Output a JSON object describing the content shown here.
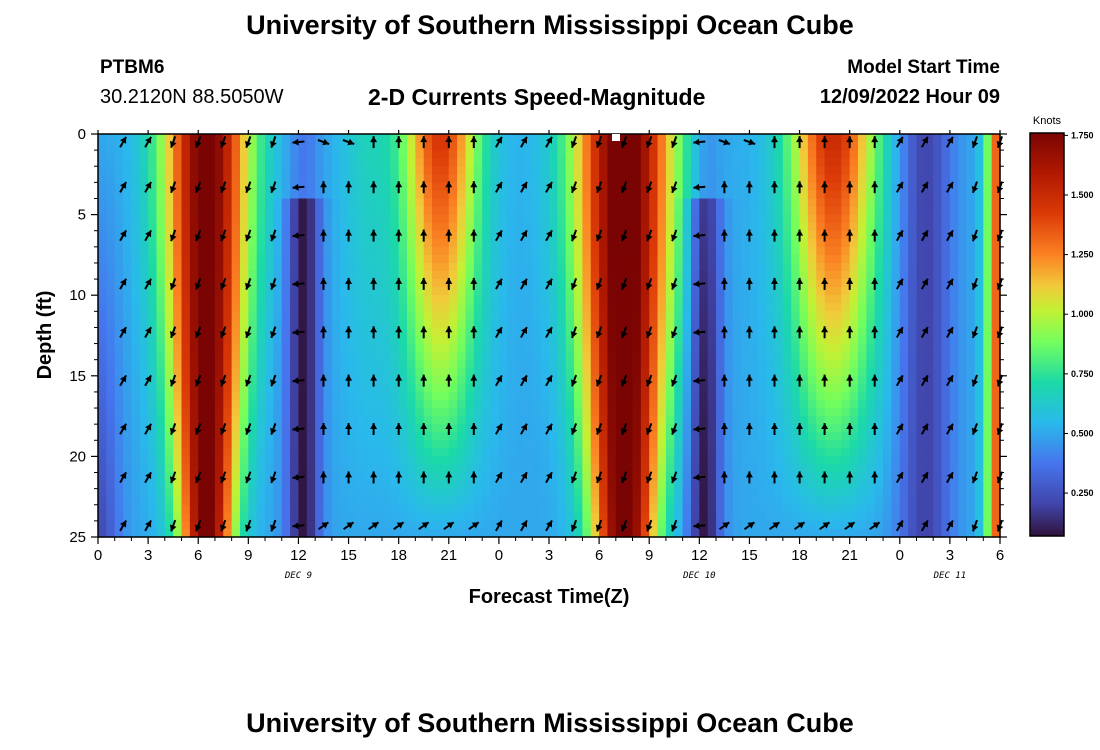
{
  "header": {
    "title": "University of Southern Mississippi Ocean Cube",
    "station": "PTBM6",
    "coords": "30.2120N  88.5050W",
    "subtitle": "2-D Currents Speed-Magnitude",
    "model_label": "Model Start Time",
    "model_time": "12/09/2022 Hour 09"
  },
  "footer": {
    "title": "University of Southern Mississippi Ocean Cube"
  },
  "chart_data": {
    "type": "heatmap",
    "title": "2-D Currents Speed-Magnitude",
    "xlabel": "Forecast Time(Z)",
    "ylabel": "Depth (ft)",
    "xlim": [
      0,
      54
    ],
    "ylim": [
      0,
      25
    ],
    "x_ticks": [
      0,
      3,
      6,
      9,
      12,
      15,
      18,
      21,
      24,
      27,
      30,
      33,
      36,
      39,
      42,
      45,
      48,
      51,
      54
    ],
    "x_tick_labels": [
      "0",
      "3",
      "6",
      "9",
      "12",
      "15",
      "18",
      "21",
      "0",
      "3",
      "6",
      "9",
      "12",
      "15",
      "18",
      "21",
      "0",
      "3",
      "6"
    ],
    "y_ticks": [
      0,
      5,
      10,
      15,
      20,
      25
    ],
    "y_tick_labels": [
      "0",
      "5",
      "10",
      "15",
      "20",
      "25"
    ],
    "day_labels": [
      {
        "x": 12,
        "text": "DEC 9"
      },
      {
        "x": 36,
        "text": "DEC 10"
      },
      {
        "x": 51,
        "text": "DEC 11"
      }
    ],
    "colorbar": {
      "unit": "Knots",
      "min": 0.07,
      "max": 1.76,
      "ticks": [
        1.75,
        1.5,
        1.25,
        1.0,
        0.75,
        0.5,
        0.25
      ],
      "tick_labels": [
        "1.750",
        "1.500",
        "1.250",
        "1.000",
        "0.750",
        "0.500",
        "0.250"
      ]
    },
    "description": "Current speed (knots) vs forecast hour (x) and depth in ft (y); high-speed bands near hours 5-9 and 29-35, secondary maxima near hours 19-22 and 42-46; arrows show current direction"
  }
}
